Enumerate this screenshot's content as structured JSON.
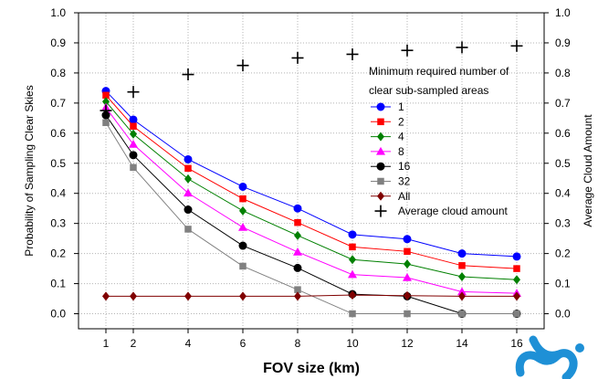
{
  "chart_data": {
    "type": "line",
    "xlabel": "FOV size (km)",
    "ylabel_left": "Probability of Sampling Clear Skies",
    "ylabel_right": "Average Cloud Amount",
    "x": [
      1,
      2,
      4,
      6,
      8,
      10,
      12,
      14,
      16
    ],
    "x_ticks": [
      "1",
      "2",
      "4",
      "6",
      "8",
      "10",
      "12",
      "14",
      "16"
    ],
    "y_ticks": [
      "0.0",
      "0.1",
      "0.2",
      "0.3",
      "0.4",
      "0.5",
      "0.6",
      "0.7",
      "0.8",
      "0.9",
      "1.0"
    ],
    "xlim": [
      0,
      17
    ],
    "ylim": [
      -0.05,
      1.0
    ],
    "grid": true,
    "legend": {
      "title_lines": [
        "Minimum required number of",
        "clear sub-sampled areas"
      ],
      "placement": "right"
    },
    "series": [
      {
        "name": "1",
        "color": "#0000ff",
        "marker": "circle",
        "values": [
          0.74,
          0.645,
          0.513,
          0.422,
          0.35,
          0.263,
          0.248,
          0.2,
          0.19
        ]
      },
      {
        "name": "2",
        "color": "#ff0000",
        "marker": "square",
        "values": [
          0.726,
          0.623,
          0.483,
          0.382,
          0.303,
          0.222,
          0.207,
          0.16,
          0.15
        ]
      },
      {
        "name": "4",
        "color": "#008000",
        "marker": "diamond",
        "values": [
          0.705,
          0.597,
          0.448,
          0.342,
          0.26,
          0.18,
          0.165,
          0.123,
          0.113
        ]
      },
      {
        "name": "8",
        "color": "#ff00ff",
        "marker": "triangle",
        "values": [
          0.685,
          0.563,
          0.401,
          0.287,
          0.205,
          0.13,
          0.12,
          0.073,
          0.068
        ]
      },
      {
        "name": "16",
        "color": "#000000",
        "marker": "circle",
        "values": [
          0.66,
          0.527,
          0.346,
          0.226,
          0.152,
          0.065,
          0.058,
          0.0,
          0.0
        ]
      },
      {
        "name": "32",
        "color": "#808080",
        "marker": "square",
        "values": [
          0.635,
          0.486,
          0.281,
          0.158,
          0.08,
          0.0,
          0.0,
          0.0,
          0.0
        ]
      },
      {
        "name": "All",
        "color": "#800000",
        "marker": "diamond",
        "values": [
          0.058,
          0.058,
          0.058,
          0.058,
          0.058,
          0.062,
          0.06,
          0.058,
          0.058
        ]
      },
      {
        "name": "Average cloud amount",
        "color": "#000000",
        "marker": "plus",
        "line": false,
        "values": [
          0.675,
          0.737,
          0.795,
          0.825,
          0.85,
          0.862,
          0.875,
          0.885,
          0.89
        ]
      }
    ]
  },
  "logo": {
    "color": "#1e90d6"
  }
}
